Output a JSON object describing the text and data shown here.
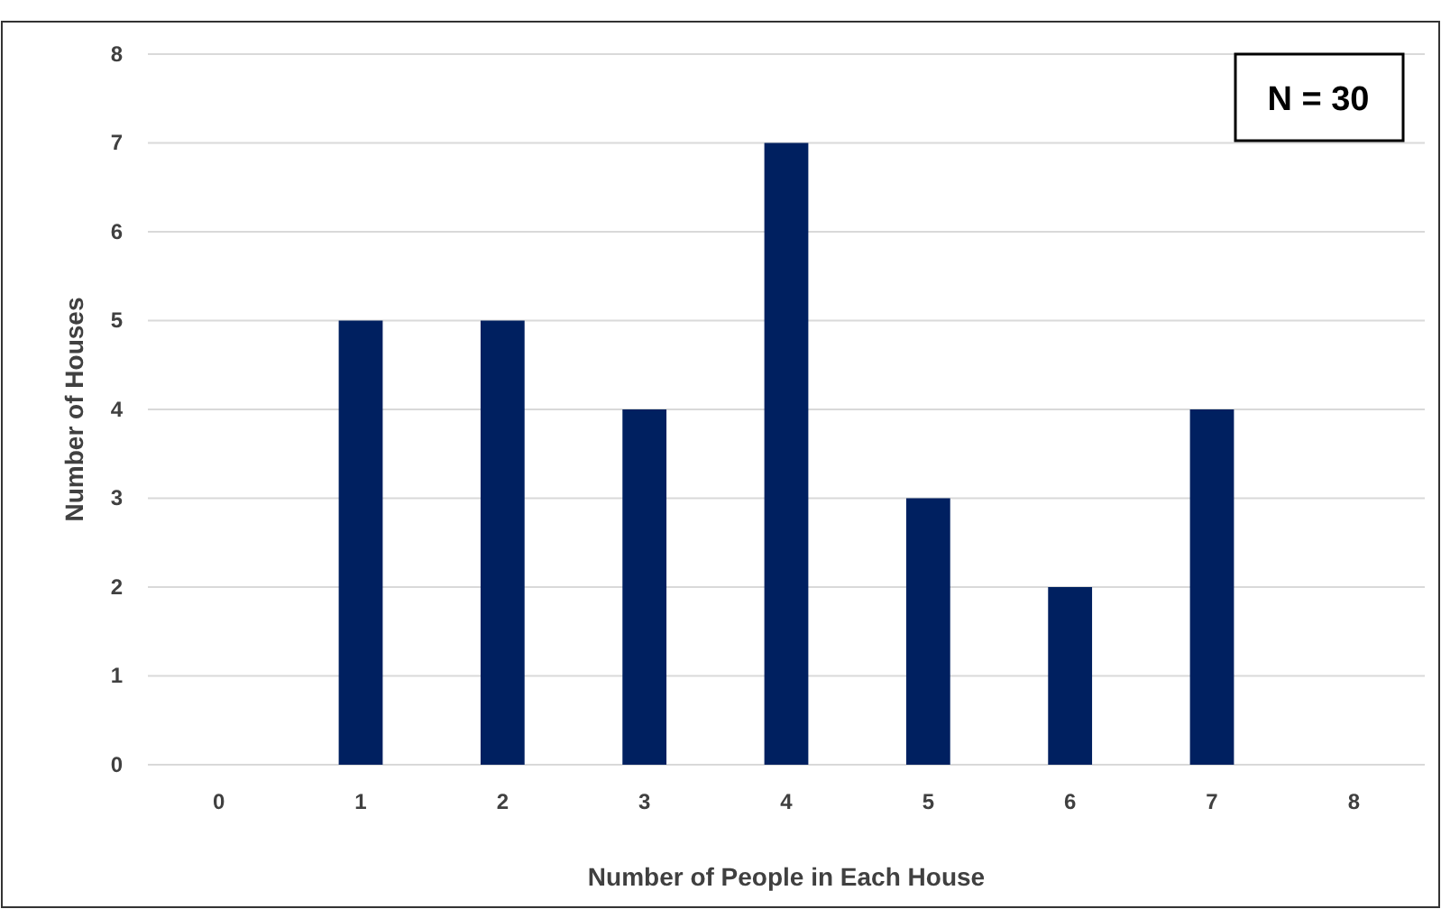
{
  "chart_data": {
    "type": "bar",
    "xlabel": "Number of People in Each House",
    "ylabel": "Number of Houses",
    "categories": [
      "0",
      "1",
      "2",
      "3",
      "4",
      "5",
      "6",
      "7",
      "8"
    ],
    "values": [
      0,
      5,
      5,
      4,
      7,
      3,
      2,
      4,
      0
    ],
    "color": "#002060",
    "ylim": [
      0,
      8
    ],
    "yticks": [
      0,
      1,
      2,
      3,
      4,
      5,
      6,
      7,
      8
    ],
    "grid": "y",
    "annotations": [
      "N = 30"
    ]
  }
}
